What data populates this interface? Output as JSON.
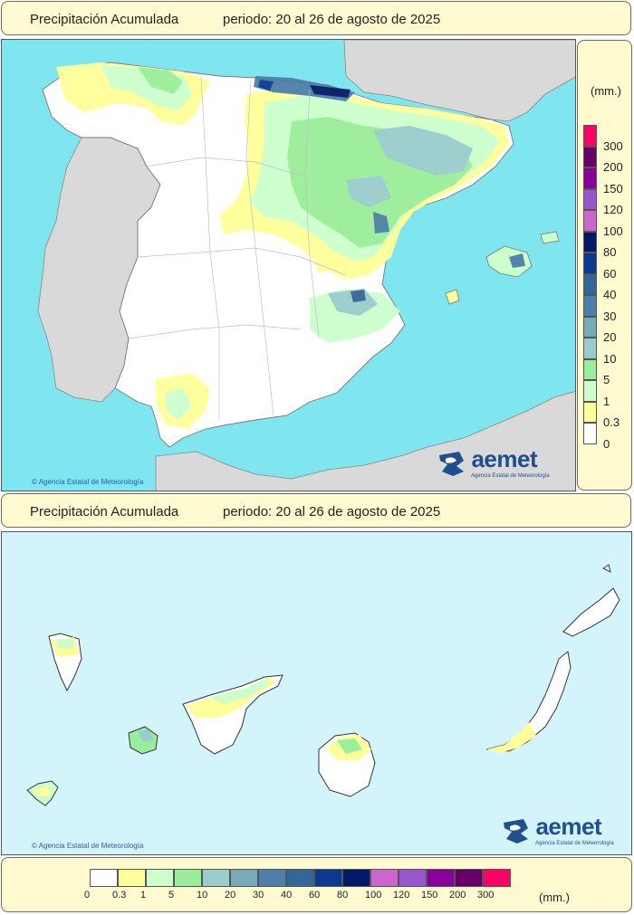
{
  "top_panel": {
    "title": "Precipitación Acumulada",
    "period": "periodo: 20 al 26 de agosto de 2025"
  },
  "bottom_panel": {
    "title": "Precipitación Acumulada",
    "period": "periodo: 20 al 26 de agosto de 2025"
  },
  "credit": "Agencia Estatal de Meteorología",
  "logo": {
    "word": "aemet",
    "sub": "Agencia Estatal de Meteorología"
  },
  "unit": "(mm.)",
  "legend": {
    "thresholds": [
      "0",
      "0.3",
      "1",
      "5",
      "10",
      "20",
      "30",
      "40",
      "60",
      "80",
      "100",
      "120",
      "150",
      "200",
      "300"
    ],
    "colors": [
      "#ffffff",
      "#ffff99",
      "#ccffcc",
      "#99ee99",
      "#99cccc",
      "#77aabb",
      "#4d7fa8",
      "#336699",
      "#0a3a8f",
      "#001a66",
      "#cc66cc",
      "#9955cc",
      "#880099",
      "#660066",
      "#ff0066"
    ]
  },
  "colors": {
    "sea": "#7fe6f0",
    "sea_canarias": "#d4f4fb",
    "foreign_land": "#d9d9d9",
    "land": "#ffffff",
    "panel_bg": "#fffad0"
  },
  "icons": [
    "copyright-icon",
    "aemet-logo-icon"
  ]
}
